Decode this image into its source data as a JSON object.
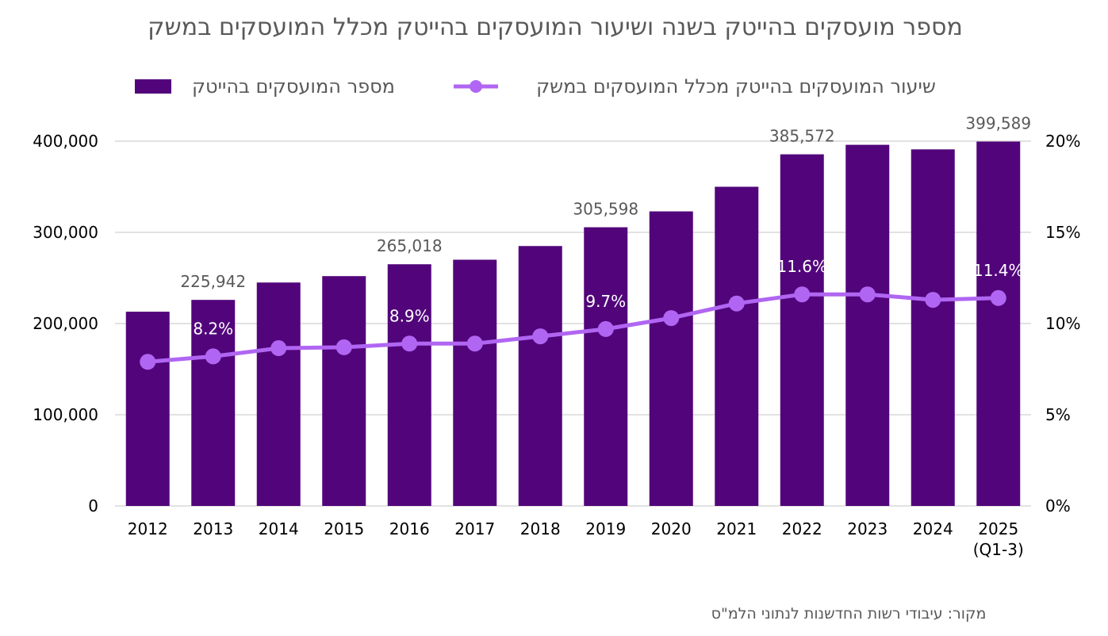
{
  "chart_data": {
    "type": "bar+line",
    "title": "מספר מועסקים בהייטק בשנה ושיעור המועסקים בהייטק מכלל המועסקים במשק",
    "categories": [
      "2012",
      "2013",
      "2014",
      "2015",
      "2016",
      "2017",
      "2018",
      "2019",
      "2020",
      "2021",
      "2022",
      "2023",
      "2024",
      "2025\n(Q1-3)"
    ],
    "series": [
      {
        "name": "מספר המועסקים בהייטק",
        "type": "bar",
        "axis": "left",
        "color": "#52057b",
        "values": [
          213000,
          225942,
          245000,
          252000,
          265018,
          270000,
          285000,
          305598,
          323000,
          350000,
          385572,
          396000,
          391000,
          399589
        ],
        "labels": [
          "",
          "225,942",
          "",
          "",
          "265,018",
          "",
          "",
          "305,598",
          "",
          "",
          "385,572",
          "",
          "",
          "399,589"
        ]
      },
      {
        "name": "שיעור המועסקים בהייטק מכלל המועסקים במשק",
        "type": "line",
        "axis": "right",
        "color": "#b066f2",
        "values": [
          7.9,
          8.2,
          8.65,
          8.7,
          8.9,
          8.9,
          9.3,
          9.7,
          10.3,
          11.1,
          11.6,
          11.6,
          11.3,
          11.4
        ],
        "labels": [
          "",
          "8.2%",
          "",
          "",
          "8.9%",
          "",
          "",
          "9.7%",
          "",
          "",
          "11.6%",
          "",
          "",
          "11.4%"
        ]
      }
    ],
    "y_left": {
      "range": [
        0,
        400000
      ],
      "ticks": [
        "0",
        "100,000",
        "200,000",
        "300,000",
        "400,000"
      ]
    },
    "y_right": {
      "range": [
        0,
        20
      ],
      "ticks": [
        "0%",
        "5%",
        "10%",
        "15%",
        "20%"
      ]
    },
    "grid": true,
    "legend_position": "top",
    "source": "מקור: עיבודי רשות החדשנות לנתוני הלמ\"ס"
  }
}
